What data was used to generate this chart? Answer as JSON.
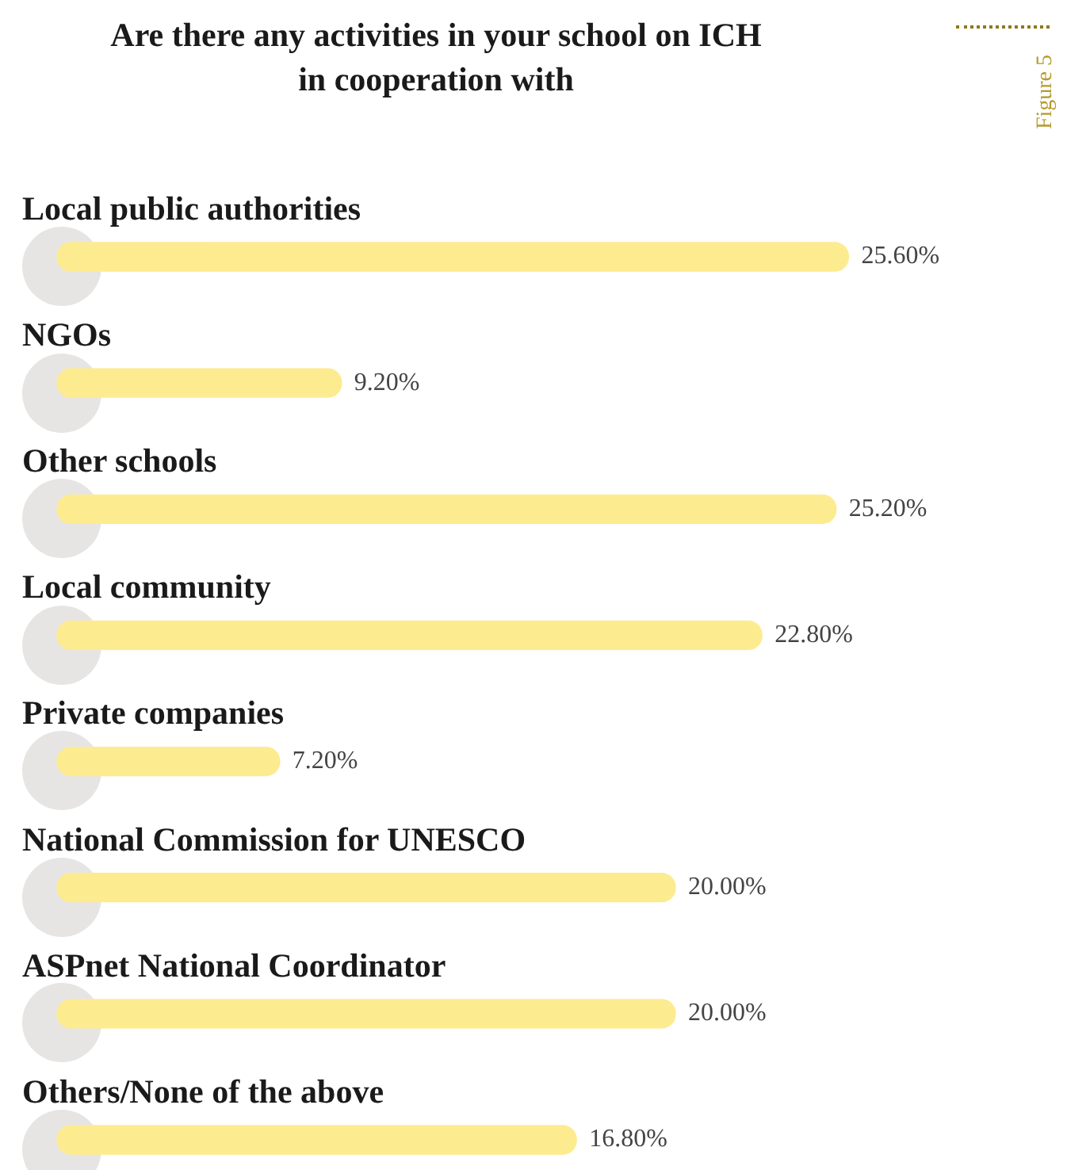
{
  "chart_data": {
    "type": "bar",
    "orientation": "horizontal",
    "title": "Are there any activities in your school on ICH in cooperation with",
    "categories": [
      "Local public authorities",
      "NGOs",
      "Other schools",
      "Local community",
      "Private companies",
      "National Commission for UNESCO",
      "ASPnet National Coordinator",
      "Others/None of the above"
    ],
    "values": [
      25.6,
      9.2,
      25.2,
      22.8,
      7.2,
      20.0,
      20.0,
      16.8
    ],
    "value_labels": [
      "25.60%",
      "9.20%",
      "25.20%",
      "22.80%",
      "7.20%",
      "20.00%",
      "20.00%",
      "16.80%"
    ],
    "color": "#fdeb8f",
    "annotations": [
      "Figure 5"
    ]
  }
}
